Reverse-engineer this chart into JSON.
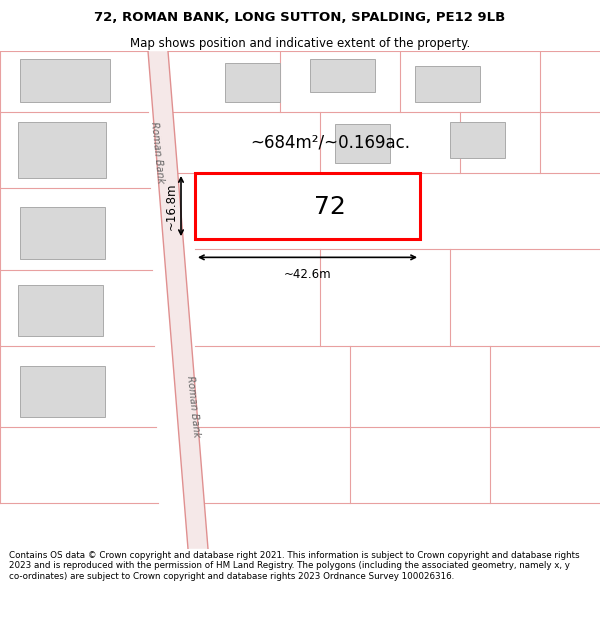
{
  "title_line1": "72, ROMAN BANK, LONG SUTTON, SPALDING, PE12 9LB",
  "title_line2": "Map shows position and indicative extent of the property.",
  "footer_text": "Contains OS data © Crown copyright and database right 2021. This information is subject to Crown copyright and database rights 2023 and is reproduced with the permission of HM Land Registry. The polygons (including the associated geometry, namely x, y co-ordinates) are subject to Crown copyright and database rights 2023 Ordnance Survey 100026316.",
  "bg_color": "#ffffff",
  "road_fill": "#f5e8e8",
  "road_border": "#e09090",
  "building_fill": "#d8d8d8",
  "building_border": "#aaaaaa",
  "pink_line": "#e8a0a0",
  "highlight_color": "#ff0000",
  "road_label": "Roman Bank",
  "property_number": "72",
  "area_label": "~684m²/~0.169ac.",
  "width_label": "~42.6m",
  "height_label": "~16.8m"
}
